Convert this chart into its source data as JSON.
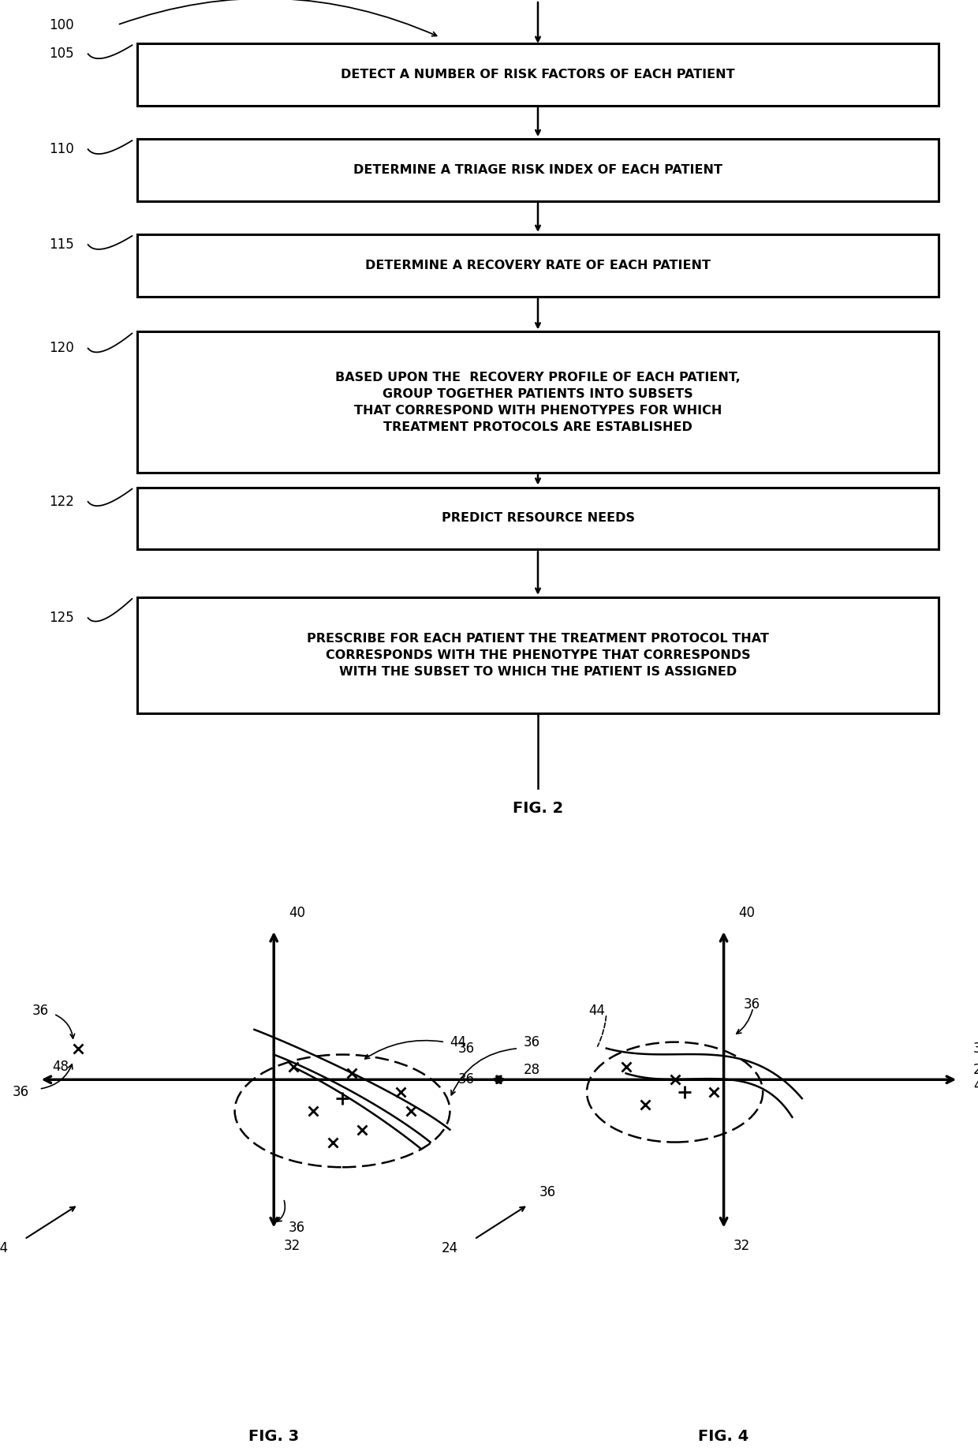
{
  "background_color": "#ffffff",
  "fig_width": 12.4,
  "fig_height": 18.44,
  "box_texts": {
    "105": "DETECT A NUMBER OF RISK FACTORS OF EACH PATIENT",
    "110": "DETERMINE A TRIAGE RISK INDEX OF EACH PATIENT",
    "115": "DETERMINE A RECOVERY RATE OF EACH PATIENT",
    "120": "BASED UPON THE  RECOVERY PROFILE OF EACH PATIENT,\nGROUP TOGETHER PATIENTS INTO SUBSETS\nTHAT CORRESPOND WITH PHENOTYPES FOR WHICH\nTREATMENT PROTOCOLS ARE ESTABLISHED",
    "122": "PREDICT RESOURCE NEEDS",
    "125": "PRESCRIBE FOR EACH PATIENT THE TREATMENT PROTOCOL THAT\nCORRESPONDS WITH THE PHENOTYPE THAT CORRESPONDS\nWITH THE SUBSET TO WHICH THE PATIENT IS ASSIGNED"
  },
  "fig2_label": "FIG. 2",
  "fig3_label": "FIG. 3",
  "fig4_label": "FIG. 4"
}
